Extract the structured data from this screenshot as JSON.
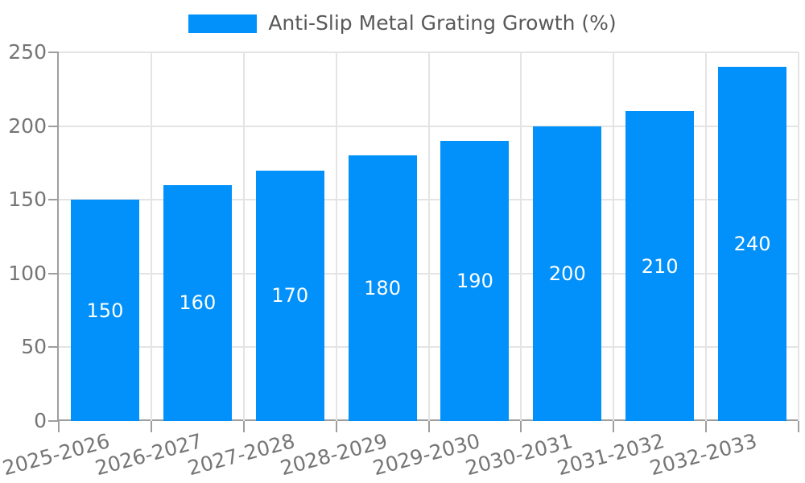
{
  "chart_data": {
    "type": "bar",
    "title": "Anti-Slip Metal Grating Growth (%)",
    "categories": [
      "2025-2026",
      "2026-2027",
      "2027-2028",
      "2028-2029",
      "2029-2030",
      "2030-2031",
      "2031-2032",
      "2032-2033"
    ],
    "values": [
      150,
      160,
      170,
      180,
      190,
      200,
      210,
      240
    ],
    "xlabel": "",
    "ylabel": "",
    "ylim": [
      0,
      250
    ],
    "yticks": [
      0,
      50,
      100,
      150,
      200,
      250
    ],
    "grid": true,
    "legend_position": "top",
    "x_label_rotation_deg": -15,
    "colors": {
      "bar": "#0291FA",
      "value_label": "#FFFFFF",
      "axis": "#9E9E9E",
      "grid": "#E4E4E4",
      "tick_label": "#757575",
      "legend_text": "#595959"
    }
  }
}
